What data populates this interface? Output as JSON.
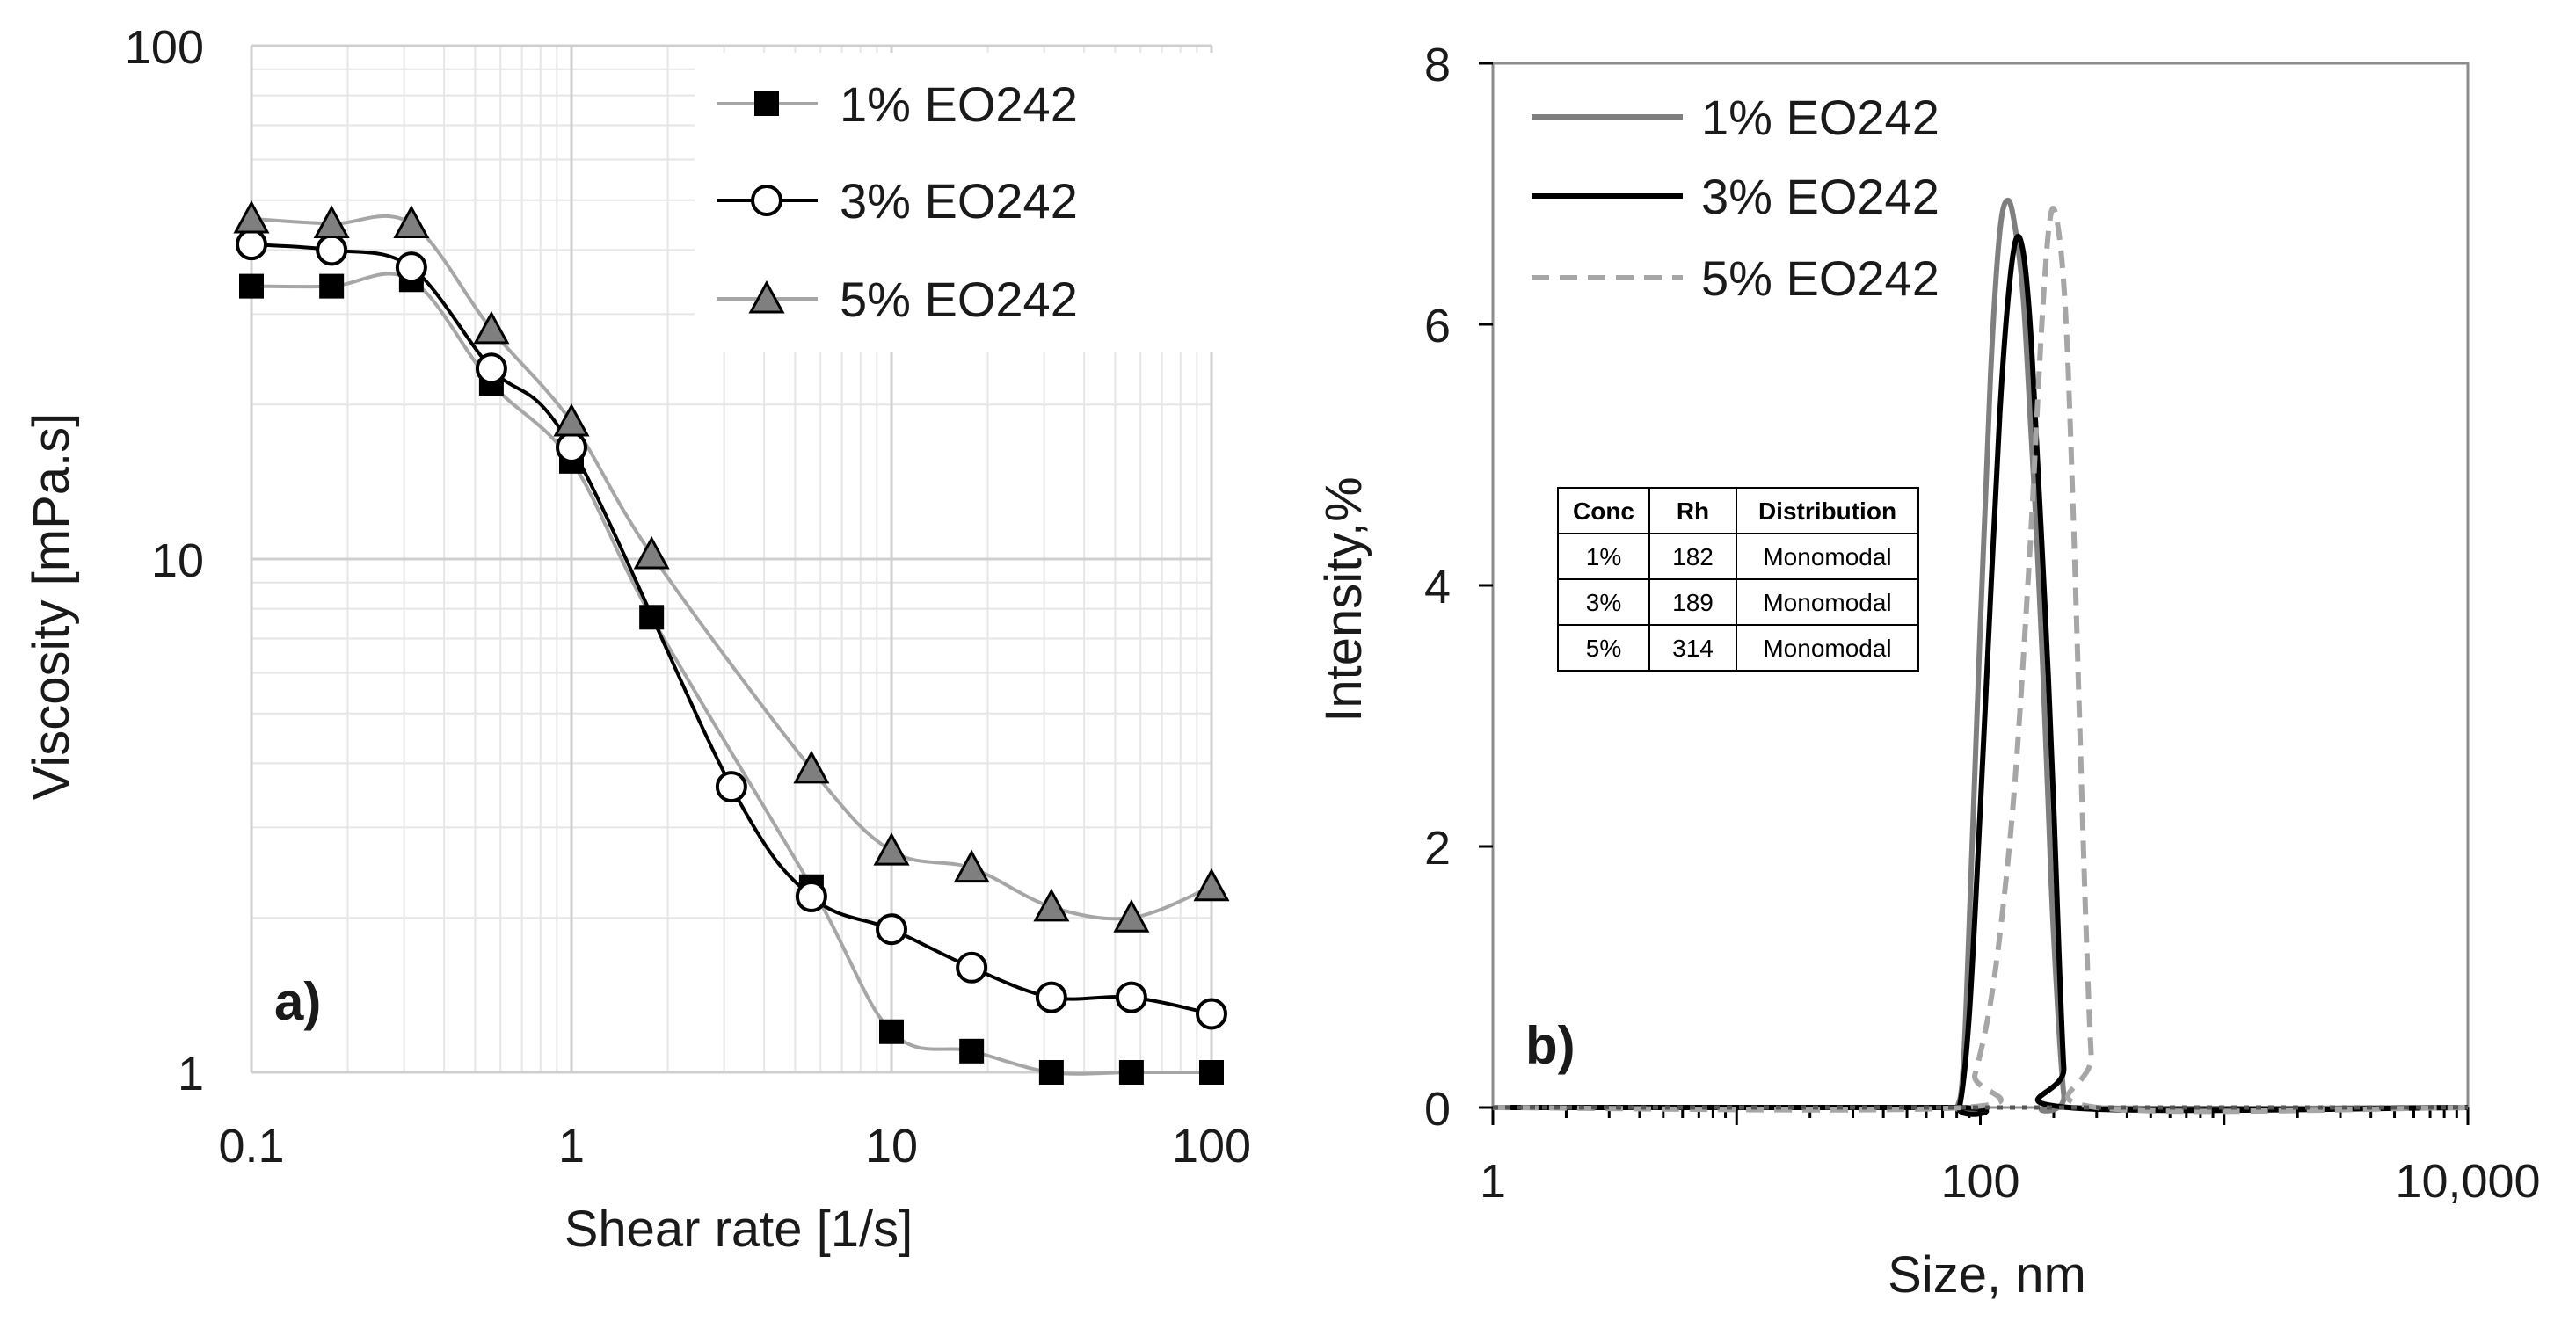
{
  "panels": {
    "a": {
      "label": "a)"
    },
    "b": {
      "label": "b)"
    }
  },
  "chart_data": [
    {
      "type": "line",
      "xlabel": "Shear rate [1/s]",
      "ylabel": "Viscosity [mPa.s]",
      "xscale": "log",
      "yscale": "log",
      "xlim": [
        0.1,
        100
      ],
      "ylim": [
        1,
        100
      ],
      "xticks": [
        "0.1",
        "1",
        "10",
        "100"
      ],
      "yticks": [
        "1",
        "10",
        "100"
      ],
      "grid": true,
      "legend_position": "top-right",
      "series": [
        {
          "name": "1% EO242",
          "marker": "filled-square",
          "line_color": "#a6a6a6",
          "x": [
            0.1,
            0.178,
            0.316,
            0.562,
            1,
            1.78,
            5.62,
            10,
            17.8,
            31.6,
            56.2,
            100
          ],
          "y": [
            34,
            34,
            35,
            22,
            15.5,
            7.7,
            2.3,
            1.2,
            1.1,
            1.0,
            1.0,
            1.0
          ]
        },
        {
          "name": "3% EO242",
          "marker": "open-circle",
          "line_color": "#000000",
          "x": [
            0.1,
            0.178,
            0.316,
            0.562,
            1,
            3.16,
            5.62,
            10,
            17.8,
            31.6,
            56.2,
            100
          ],
          "y": [
            41,
            40,
            37,
            23.5,
            16.5,
            3.6,
            2.2,
            1.9,
            1.6,
            1.4,
            1.4,
            1.3
          ]
        },
        {
          "name": "5% EO242",
          "marker": "filled-triangle",
          "line_color": "#a6a6a6",
          "x": [
            0.1,
            0.178,
            0.316,
            0.562,
            1,
            1.78,
            5.62,
            10,
            17.8,
            31.6,
            56.2,
            100
          ],
          "y": [
            46,
            45,
            45,
            28,
            18.5,
            10.2,
            3.9,
            2.7,
            2.5,
            2.1,
            2.0,
            2.3
          ]
        }
      ]
    },
    {
      "type": "line",
      "xlabel": "Size, nm",
      "ylabel": "Intensity,%",
      "xscale": "log",
      "xlim": [
        1,
        10000
      ],
      "ylim": [
        0,
        8
      ],
      "xticks": [
        "1",
        "100",
        "10,000"
      ],
      "yticks": [
        "0",
        "2",
        "4",
        "6",
        "8"
      ],
      "legend_position": "top-left",
      "series": [
        {
          "name": "1% EO242",
          "line_color": "#7f7f7f",
          "style": "solid",
          "x": [
            1,
            70,
            80,
            85,
            90,
            100,
            110,
            120,
            130,
            140,
            150,
            160,
            170,
            180,
            190,
            200,
            220,
            240,
            10000
          ],
          "y": [
            0,
            0,
            0,
            0.3,
            1.4,
            3.7,
            5.6,
            6.7,
            6.95,
            6.7,
            6.2,
            5.3,
            4.4,
            3.4,
            2.3,
            1.3,
            0.1,
            0,
            0
          ]
        },
        {
          "name": "3% EO242",
          "line_color": "#000000",
          "style": "solid",
          "x": [
            1,
            75,
            82,
            90,
            100,
            110,
            120,
            130,
            140,
            150,
            160,
            170,
            180,
            190,
            200,
            210,
            220,
            230,
            10000
          ],
          "y": [
            0,
            0,
            0,
            0.7,
            2.3,
            3.9,
            5.3,
            6.2,
            6.65,
            6.55,
            6.0,
            5.1,
            4.2,
            3.3,
            2.3,
            1.2,
            0.3,
            0,
            0
          ]
        },
        {
          "name": "5% EO242",
          "line_color": "#a6a6a6",
          "style": "dashed",
          "x": [
            1,
            85,
            95,
            110,
            125,
            140,
            160,
            180,
            195,
            210,
            225,
            240,
            255,
            270,
            285,
            300,
            10000
          ],
          "y": [
            0,
            0,
            0.25,
            0.8,
            1.6,
            2.6,
            4.3,
            6.1,
            6.85,
            6.7,
            6.0,
            4.6,
            3.0,
            1.5,
            0.4,
            0,
            0
          ]
        }
      ],
      "table": {
        "columns": [
          "Conc",
          "Rh",
          "Distribution"
        ],
        "rows": [
          [
            "1%",
            "182",
            "Monomodal"
          ],
          [
            "3%",
            "189",
            "Monomodal"
          ],
          [
            "5%",
            "314",
            "Monomodal"
          ]
        ]
      }
    }
  ]
}
